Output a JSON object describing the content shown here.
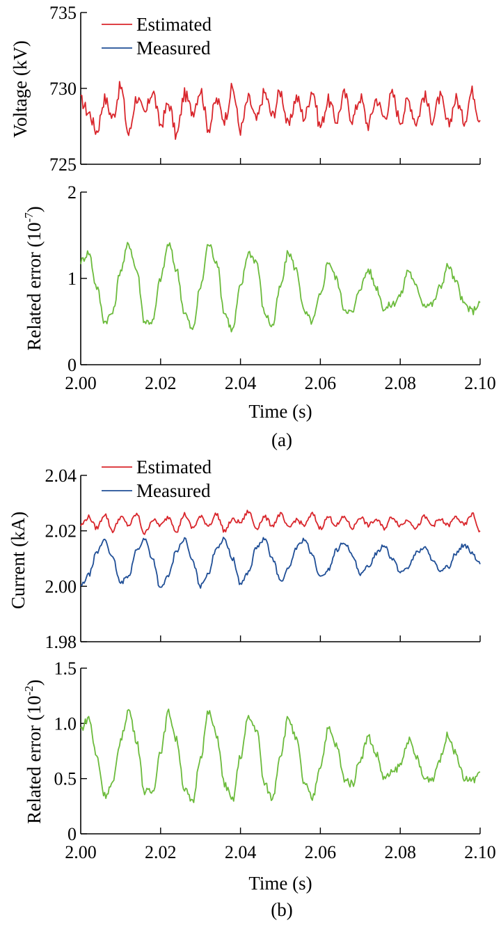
{
  "chart_data": [
    {
      "type": "line",
      "panel": "a-top",
      "ylabel": "Voltage (kV)",
      "xlim": [
        2.0,
        2.1
      ],
      "ylim": [
        725,
        735
      ],
      "yticks": [
        "725",
        "730",
        "735"
      ],
      "xticks": [
        2.0,
        2.02,
        2.04,
        2.06,
        2.08,
        2.1
      ],
      "legend": "top-left",
      "grid": false,
      "series": [
        {
          "name": "Estimated",
          "color": "#d9262c",
          "x": [
            2.0,
            2.002,
            2.004,
            2.006,
            2.008,
            2.01,
            2.012,
            2.014,
            2.016,
            2.018,
            2.02,
            2.022,
            2.024,
            2.026,
            2.028,
            2.03,
            2.032,
            2.034,
            2.036,
            2.038,
            2.04,
            2.042,
            2.044,
            2.046,
            2.048,
            2.05,
            2.052,
            2.054,
            2.056,
            2.058,
            2.06,
            2.062,
            2.064,
            2.066,
            2.068,
            2.07,
            2.072,
            2.074,
            2.076,
            2.078,
            2.08,
            2.082,
            2.084,
            2.086,
            2.088,
            2.09,
            2.092,
            2.094,
            2.096,
            2.098,
            2.1
          ],
          "values": [
            729.2,
            728.4,
            727.2,
            729.3,
            728.1,
            730.1,
            727.0,
            729.4,
            728.3,
            729.8,
            727.6,
            729.0,
            726.9,
            729.6,
            728.5,
            729.9,
            727.4,
            729.2,
            728.0,
            730.0,
            727.3,
            729.3,
            727.9,
            729.7,
            728.2,
            729.8,
            727.5,
            729.4,
            728.1,
            729.9,
            727.5,
            729.2,
            727.9,
            729.6,
            728.0,
            729.4,
            727.6,
            729.3,
            728.1,
            729.6,
            727.9,
            729.2,
            727.8,
            729.5,
            728.0,
            729.4,
            727.6,
            729.3,
            727.9,
            729.8,
            727.9
          ]
        },
        {
          "name": "Measured",
          "color": "#1f4e96",
          "x": [],
          "values": []
        }
      ]
    },
    {
      "type": "line",
      "panel": "a-bottom",
      "ylabel": "Related error (10",
      "ylabel_exp": "-7",
      "ylabel_close": ")",
      "xlabel": "Time (s)",
      "xlim": [
        2.0,
        2.1
      ],
      "ylim": [
        0,
        2
      ],
      "yticks": [
        "0",
        "1",
        "2"
      ],
      "xticks": [
        "2.00",
        "2.02",
        "2.04",
        "2.06",
        "2.08",
        "2.10"
      ],
      "grid": false,
      "series": [
        {
          "color": "#6cbb3c",
          "x": [
            2.0,
            2.002,
            2.004,
            2.006,
            2.008,
            2.01,
            2.012,
            2.014,
            2.016,
            2.018,
            2.02,
            2.022,
            2.024,
            2.026,
            2.028,
            2.03,
            2.032,
            2.034,
            2.036,
            2.038,
            2.04,
            2.042,
            2.044,
            2.046,
            2.048,
            2.05,
            2.052,
            2.054,
            2.056,
            2.058,
            2.06,
            2.062,
            2.064,
            2.066,
            2.068,
            2.07,
            2.072,
            2.074,
            2.076,
            2.078,
            2.08,
            2.082,
            2.084,
            2.086,
            2.088,
            2.09,
            2.092,
            2.094,
            2.096,
            2.098,
            2.1
          ],
          "values": [
            1.2,
            1.3,
            0.9,
            0.5,
            0.6,
            1.1,
            1.4,
            1.1,
            0.5,
            0.5,
            1.0,
            1.4,
            1.1,
            0.6,
            0.4,
            0.9,
            1.4,
            1.2,
            0.6,
            0.4,
            0.9,
            1.3,
            1.2,
            0.6,
            0.45,
            0.9,
            1.3,
            1.1,
            0.6,
            0.5,
            0.8,
            1.2,
            1.0,
            0.65,
            0.6,
            0.9,
            1.1,
            0.9,
            0.65,
            0.7,
            0.8,
            1.1,
            0.9,
            0.7,
            0.7,
            0.9,
            1.15,
            0.95,
            0.7,
            0.62,
            0.72
          ]
        }
      ]
    },
    {
      "type": "line",
      "panel": "b-top",
      "ylabel": "Current (kA)",
      "xlim": [
        2.0,
        2.1
      ],
      "ylim": [
        1.98,
        2.04
      ],
      "yticks": [
        "1.98",
        "2.00",
        "2.02",
        "2.04"
      ],
      "xticks": [
        2.0,
        2.02,
        2.04,
        2.06,
        2.08,
        2.1
      ],
      "legend": "top-left",
      "grid": false,
      "series": [
        {
          "name": "Estimated",
          "color": "#d9262c",
          "x": [
            2.0,
            2.002,
            2.004,
            2.006,
            2.008,
            2.01,
            2.012,
            2.014,
            2.016,
            2.018,
            2.02,
            2.022,
            2.024,
            2.026,
            2.028,
            2.03,
            2.032,
            2.034,
            2.036,
            2.038,
            2.04,
            2.042,
            2.044,
            2.046,
            2.048,
            2.05,
            2.052,
            2.054,
            2.056,
            2.058,
            2.06,
            2.062,
            2.064,
            2.066,
            2.068,
            2.07,
            2.072,
            2.074,
            2.076,
            2.078,
            2.08,
            2.082,
            2.084,
            2.086,
            2.088,
            2.09,
            2.092,
            2.094,
            2.096,
            2.098,
            2.1
          ],
          "values": [
            2.022,
            2.025,
            2.021,
            2.026,
            2.02,
            2.025,
            2.022,
            2.026,
            2.019,
            2.024,
            2.022,
            2.025,
            2.02,
            2.026,
            2.021,
            2.025,
            2.022,
            2.026,
            2.02,
            2.024,
            2.023,
            2.027,
            2.021,
            2.025,
            2.022,
            2.026,
            2.021,
            2.024,
            2.022,
            2.026,
            2.021,
            2.025,
            2.022,
            2.025,
            2.021,
            2.025,
            2.022,
            2.024,
            2.021,
            2.025,
            2.022,
            2.024,
            2.021,
            2.025,
            2.022,
            2.024,
            2.022,
            2.025,
            2.022,
            2.026,
            2.02
          ]
        },
        {
          "name": "Measured",
          "color": "#1f4e96",
          "x": [
            2.0,
            2.002,
            2.004,
            2.006,
            2.008,
            2.01,
            2.012,
            2.014,
            2.016,
            2.018,
            2.02,
            2.022,
            2.024,
            2.026,
            2.028,
            2.03,
            2.032,
            2.034,
            2.036,
            2.038,
            2.04,
            2.042,
            2.044,
            2.046,
            2.048,
            2.05,
            2.052,
            2.054,
            2.056,
            2.058,
            2.06,
            2.062,
            2.064,
            2.066,
            2.068,
            2.07,
            2.072,
            2.074,
            2.076,
            2.078,
            2.08,
            2.082,
            2.084,
            2.086,
            2.088,
            2.09,
            2.092,
            2.094,
            2.096,
            2.098,
            2.1
          ],
          "values": [
            2.0,
            2.004,
            2.012,
            2.017,
            2.01,
            2.001,
            2.004,
            2.013,
            2.017,
            2.01,
            1.999,
            2.004,
            2.013,
            2.017,
            2.009,
            2.0,
            2.005,
            2.014,
            2.017,
            2.01,
            2.001,
            2.005,
            2.014,
            2.017,
            2.01,
            2.002,
            2.006,
            2.014,
            2.017,
            2.011,
            2.003,
            2.006,
            2.013,
            2.016,
            2.011,
            2.004,
            2.007,
            2.012,
            2.015,
            2.01,
            2.005,
            2.007,
            2.012,
            2.014,
            2.01,
            2.005,
            2.007,
            2.012,
            2.015,
            2.012,
            2.008
          ]
        }
      ]
    },
    {
      "type": "line",
      "panel": "b-bottom",
      "ylabel": "Related error (10",
      "ylabel_exp": "-2",
      "ylabel_close": ")",
      "xlabel": "Time (s)",
      "xlim": [
        2.0,
        2.1
      ],
      "ylim": [
        0,
        1.5
      ],
      "yticks": [
        "0",
        "0.5",
        "1.0",
        "1.5"
      ],
      "xticks": [
        "2.00",
        "2.02",
        "2.04",
        "2.06",
        "2.08",
        "2.10"
      ],
      "grid": false,
      "series": [
        {
          "color": "#6cbb3c",
          "x": [
            2.0,
            2.002,
            2.004,
            2.006,
            2.008,
            2.01,
            2.012,
            2.014,
            2.016,
            2.018,
            2.02,
            2.022,
            2.024,
            2.026,
            2.028,
            2.03,
            2.032,
            2.034,
            2.036,
            2.038,
            2.04,
            2.042,
            2.044,
            2.046,
            2.048,
            2.05,
            2.052,
            2.054,
            2.056,
            2.058,
            2.06,
            2.062,
            2.064,
            2.066,
            2.068,
            2.07,
            2.072,
            2.074,
            2.076,
            2.078,
            2.08,
            2.082,
            2.084,
            2.086,
            2.088,
            2.09,
            2.092,
            2.094,
            2.096,
            2.098,
            2.1
          ],
          "values": [
            0.95,
            1.05,
            0.7,
            0.35,
            0.45,
            0.85,
            1.12,
            0.85,
            0.38,
            0.38,
            0.75,
            1.1,
            0.85,
            0.4,
            0.28,
            0.7,
            1.1,
            0.9,
            0.45,
            0.3,
            0.7,
            1.05,
            0.95,
            0.45,
            0.32,
            0.72,
            1.05,
            0.85,
            0.45,
            0.32,
            0.62,
            0.95,
            0.8,
            0.5,
            0.45,
            0.68,
            0.88,
            0.72,
            0.5,
            0.55,
            0.62,
            0.85,
            0.7,
            0.5,
            0.5,
            0.68,
            0.9,
            0.72,
            0.5,
            0.48,
            0.56
          ]
        }
      ]
    }
  ],
  "captions": [
    "(a)",
    "(b)"
  ]
}
